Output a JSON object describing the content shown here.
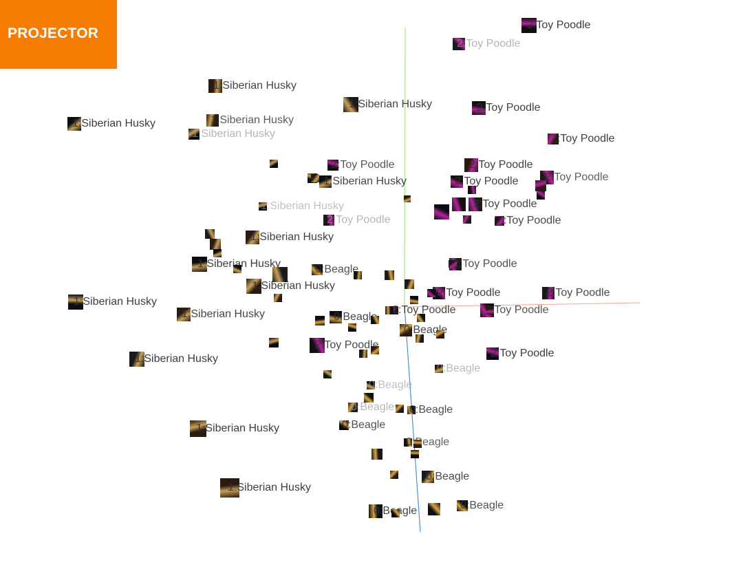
{
  "app_tab": {
    "label": "PROJECTOR",
    "color": "#f57c00"
  },
  "axes": {
    "x_color": "#f4a38a",
    "y_color": "#a6e58a",
    "z_color": "#4a8fd4"
  },
  "colors": {
    "beagle": "#d9a441",
    "husky": "#c9a158",
    "poodle": "#b4239b",
    "label_dark": "#333333",
    "label_faded": "#9b9b9b"
  },
  "points": [
    {
      "label": "2:Toy Poodle",
      "cls": "poodle",
      "depth": 0.1
    },
    {
      "label": "2:Toy Poodle",
      "cls": "poodle",
      "depth": 0.55
    },
    {
      "label": "1:Siberian Husky",
      "cls": "husky",
      "depth": 0.2
    },
    {
      "label": "1:Siberian Husky",
      "cls": "husky",
      "depth": 0.1
    },
    {
      "label": "2:Toy Poodle",
      "cls": "poodle",
      "depth": 0.15
    },
    {
      "label": "1:Siberian Husky",
      "cls": "husky",
      "depth": 0.15
    },
    {
      "label": "1:Siberian Husky",
      "cls": "husky",
      "depth": 0.45
    },
    {
      "label": "1:Siberian Husky",
      "cls": "husky",
      "depth": 0.6
    },
    {
      "label": "2:Toy Poodle",
      "cls": "poodle",
      "depth": 0.4
    },
    {
      "label": "2:Toy Poodle",
      "cls": "poodle",
      "depth": 0.5
    },
    {
      "label": "2:Toy Poodle",
      "cls": "poodle",
      "depth": 0.15
    },
    {
      "label": "1:Siberian Husky",
      "cls": "husky",
      "depth": 0.2
    },
    {
      "label": "2:Toy Poodle",
      "cls": "poodle",
      "depth": 0.15
    },
    {
      "label": "2:Toy Poodle",
      "cls": "poodle",
      "depth": 0.2
    },
    {
      "label": "2:Toy Poodle",
      "cls": "poodle",
      "depth": 0.15
    },
    {
      "label": "1:Siberian Husky",
      "cls": "husky",
      "depth": 0.85
    },
    {
      "label": "2:Toy Poodle",
      "cls": "poodle",
      "depth": 0.25
    },
    {
      "label": "2:Toy Poodle",
      "cls": "poodle",
      "depth": 0.65
    },
    {
      "label": "1:Siberian Husky",
      "cls": "husky",
      "depth": 0.15
    },
    {
      "label": "1:Siberian Husky",
      "cls": "husky",
      "depth": 0.1
    },
    {
      "label": "0:Beagle",
      "cls": "beagle",
      "depth": 0.3
    },
    {
      "label": "2:Toy Poodle",
      "cls": "poodle",
      "depth": 0.3
    },
    {
      "label": "1:Siberian Husky",
      "cls": "husky",
      "depth": 0.15
    },
    {
      "label": "1:Siberian Husky",
      "cls": "husky",
      "depth": 0.1
    },
    {
      "label": "2:Toy Poodle",
      "cls": "poodle",
      "depth": 0.15
    },
    {
      "label": "2:Toy Poodle",
      "cls": "poodle",
      "depth": 0.25
    },
    {
      "label": "1:Siberian Husky",
      "cls": "husky",
      "depth": 0.2
    },
    {
      "label": "0:Beagle",
      "cls": "beagle",
      "depth": 0.2
    },
    {
      "label": "2:Toy Poodle",
      "cls": "poodle",
      "depth": 0.35
    },
    {
      "label": "2:Toy Poodle",
      "cls": "poodle",
      "depth": 0.2
    },
    {
      "label": "0:Beagle",
      "cls": "beagle",
      "depth": 0.2
    },
    {
      "label": "2:Toy Poodle",
      "cls": "poodle",
      "depth": 0.1
    },
    {
      "label": "2:Toy Poodle",
      "cls": "poodle",
      "depth": 0.25
    },
    {
      "label": "1:Siberian Husky",
      "cls": "husky",
      "depth": 0.1
    },
    {
      "label": "0:Beagle",
      "cls": "beagle",
      "depth": 0.7
    },
    {
      "label": "0:Beagle",
      "cls": "beagle",
      "depth": 0.85
    },
    {
      "label": "0:Beagle",
      "cls": "beagle",
      "depth": 0.3
    },
    {
      "label": "0:Beagle",
      "cls": "beagle",
      "depth": 0.6
    },
    {
      "label": "1:Siberian Husky",
      "cls": "husky",
      "depth": 0.1
    },
    {
      "label": "0:Beagle",
      "cls": "beagle",
      "depth": 0.3
    },
    {
      "label": "0:Beagle",
      "cls": "beagle",
      "depth": 0.5
    },
    {
      "label": "0:Beagle",
      "cls": "beagle",
      "depth": 0.25
    },
    {
      "label": "1:Siberian Husky",
      "cls": "husky",
      "depth": 0.1
    },
    {
      "label": "0:Beagle",
      "cls": "beagle",
      "depth": 0.3
    },
    {
      "label": "0:Beagle",
      "cls": "beagle",
      "depth": 0.2
    }
  ],
  "markers": [
    {
      "cls": "husky"
    },
    {
      "cls": "husky"
    },
    {
      "cls": "husky"
    },
    {
      "cls": "husky"
    },
    {
      "cls": "husky"
    },
    {
      "cls": "husky"
    },
    {
      "cls": "husky"
    },
    {
      "cls": "husky"
    },
    {
      "cls": "husky"
    },
    {
      "cls": "husky"
    },
    {
      "cls": "beagle"
    },
    {
      "cls": "husky"
    },
    {
      "cls": "beagle"
    },
    {
      "cls": "beagle"
    },
    {
      "cls": "beagle"
    },
    {
      "cls": "beagle"
    },
    {
      "cls": "beagle"
    },
    {
      "cls": "beagle"
    },
    {
      "cls": "beagle"
    },
    {
      "cls": "beagle"
    },
    {
      "cls": "beagle"
    },
    {
      "cls": "beagle"
    },
    {
      "cls": "beagle"
    },
    {
      "cls": "beagle"
    },
    {
      "cls": "beagle"
    },
    {
      "cls": "beagle"
    },
    {
      "cls": "beagle"
    },
    {
      "cls": "beagle"
    },
    {
      "cls": "poodle"
    },
    {
      "cls": "poodle"
    },
    {
      "cls": "poodle"
    },
    {
      "cls": "poodle"
    },
    {
      "cls": "poodle"
    },
    {
      "cls": "poodle"
    },
    {
      "cls": "poodle"
    },
    {
      "cls": "poodle"
    },
    {
      "cls": "poodle"
    },
    {
      "cls": "beagle"
    },
    {
      "cls": "beagle"
    },
    {
      "cls": "beagle"
    },
    {
      "cls": "beagle"
    },
    {
      "cls": "beagle"
    },
    {
      "cls": "poodle"
    }
  ]
}
